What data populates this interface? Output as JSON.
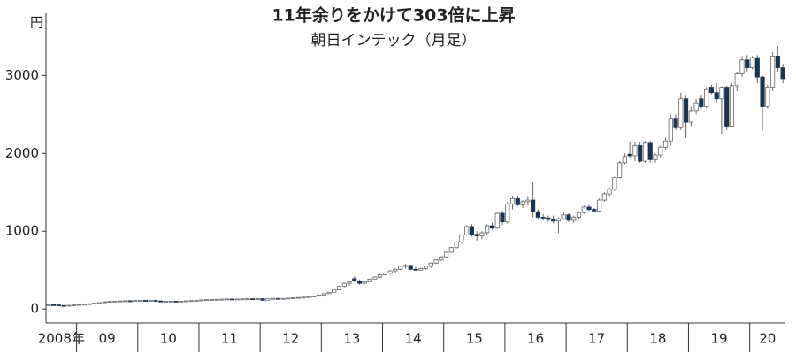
{
  "chart_data": {
    "type": "candlestick",
    "title": "11年余りをかけて303倍に上昇",
    "subtitle": "朝日インテック（月足）",
    "y_unit": "円",
    "ylim": [
      -180,
      3800
    ],
    "yticks": [
      0,
      1000,
      2000,
      3000
    ],
    "up_color": "#ffffff",
    "down_color": "#1d3450",
    "edge_color": "#666666",
    "years": [
      {
        "label": "2008年",
        "candles": [
          [
            55,
            58,
            50,
            55
          ],
          [
            55,
            56,
            48,
            52
          ],
          [
            52,
            54,
            40,
            45
          ],
          [
            45,
            50,
            35,
            42
          ],
          [
            42,
            50,
            40,
            48
          ],
          [
            48,
            55,
            45,
            52
          ]
        ]
      },
      {
        "label": "09",
        "candles": [
          [
            52,
            60,
            50,
            58
          ],
          [
            58,
            65,
            55,
            62
          ],
          [
            62,
            70,
            60,
            68
          ],
          [
            68,
            80,
            65,
            78
          ],
          [
            78,
            85,
            75,
            82
          ],
          [
            82,
            95,
            80,
            92
          ],
          [
            92,
            100,
            90,
            98
          ],
          [
            98,
            105,
            95,
            100
          ],
          [
            100,
            105,
            97,
            103
          ],
          [
            103,
            108,
            100,
            105
          ],
          [
            105,
            108,
            100,
            104
          ],
          [
            104,
            110,
            102,
            108
          ]
        ]
      },
      {
        "label": "10",
        "candles": [
          [
            108,
            112,
            104,
            110
          ],
          [
            110,
            114,
            105,
            108
          ],
          [
            108,
            112,
            104,
            110
          ],
          [
            110,
            115,
            100,
            102
          ],
          [
            102,
            108,
            90,
            92
          ],
          [
            92,
            100,
            88,
            98
          ],
          [
            98,
            104,
            95,
            100
          ],
          [
            100,
            105,
            92,
            94
          ],
          [
            94,
            102,
            90,
            100
          ],
          [
            100,
            106,
            98,
            104
          ],
          [
            104,
            110,
            100,
            108
          ],
          [
            108,
            114,
            104,
            110
          ]
        ]
      },
      {
        "label": "11",
        "candles": [
          [
            110,
            118,
            108,
            116
          ],
          [
            116,
            122,
            112,
            120
          ],
          [
            120,
            124,
            110,
            122
          ],
          [
            122,
            126,
            118,
            124
          ],
          [
            124,
            128,
            120,
            126
          ],
          [
            126,
            130,
            122,
            128
          ],
          [
            128,
            130,
            122,
            126
          ],
          [
            126,
            130,
            120,
            128
          ],
          [
            128,
            132,
            124,
            130
          ],
          [
            130,
            134,
            126,
            132
          ],
          [
            132,
            134,
            126,
            130
          ],
          [
            130,
            134,
            128,
            132
          ]
        ]
      },
      {
        "label": "12",
        "candles": [
          [
            132,
            134,
            108,
            112
          ],
          [
            112,
            135,
            110,
            132
          ],
          [
            132,
            138,
            128,
            136
          ],
          [
            136,
            140,
            130,
            134
          ],
          [
            134,
            138,
            128,
            136
          ],
          [
            136,
            142,
            132,
            140
          ],
          [
            140,
            146,
            136,
            144
          ],
          [
            144,
            150,
            140,
            148
          ],
          [
            148,
            154,
            144,
            152
          ],
          [
            152,
            160,
            148,
            158
          ],
          [
            158,
            168,
            154,
            165
          ],
          [
            165,
            180,
            162,
            178
          ]
        ]
      },
      {
        "label": "13",
        "candles": [
          [
            178,
            200,
            175,
            196
          ],
          [
            196,
            220,
            190,
            215
          ],
          [
            215,
            250,
            210,
            245
          ],
          [
            245,
            300,
            240,
            290
          ],
          [
            290,
            340,
            280,
            330
          ],
          [
            330,
            360,
            300,
            350
          ],
          [
            390,
            420,
            350,
            360
          ],
          [
            360,
            380,
            310,
            330
          ],
          [
            330,
            360,
            320,
            350
          ],
          [
            350,
            390,
            345,
            385
          ],
          [
            385,
            420,
            380,
            410
          ],
          [
            410,
            450,
            400,
            440
          ]
        ]
      },
      {
        "label": "14",
        "candles": [
          [
            440,
            470,
            430,
            460
          ],
          [
            460,
            500,
            450,
            490
          ],
          [
            490,
            520,
            470,
            510
          ],
          [
            510,
            560,
            500,
            550
          ],
          [
            550,
            580,
            520,
            560
          ],
          [
            560,
            570,
            500,
            510
          ],
          [
            510,
            540,
            490,
            500
          ],
          [
            500,
            530,
            495,
            520
          ],
          [
            520,
            560,
            510,
            550
          ],
          [
            550,
            600,
            530,
            590
          ],
          [
            590,
            640,
            580,
            630
          ],
          [
            630,
            680,
            620,
            670
          ]
        ]
      },
      {
        "label": "15",
        "candles": [
          [
            670,
            740,
            660,
            730
          ],
          [
            730,
            800,
            720,
            790
          ],
          [
            790,
            870,
            780,
            860
          ],
          [
            860,
            960,
            840,
            950
          ],
          [
            950,
            1080,
            940,
            1060
          ],
          [
            1060,
            1090,
            930,
            960
          ],
          [
            960,
            1000,
            880,
            940
          ],
          [
            940,
            1000,
            900,
            980
          ],
          [
            980,
            1090,
            960,
            1070
          ],
          [
            1070,
            1110,
            1020,
            1040
          ],
          [
            1040,
            1250,
            1030,
            1230
          ],
          [
            1230,
            1260,
            1080,
            1120
          ]
        ]
      },
      {
        "label": "16",
        "candles": [
          [
            1120,
            1380,
            1100,
            1350
          ],
          [
            1350,
            1450,
            1280,
            1420
          ],
          [
            1420,
            1460,
            1320,
            1340
          ],
          [
            1340,
            1400,
            1300,
            1380
          ],
          [
            1380,
            1440,
            1330,
            1400
          ],
          [
            1400,
            1630,
            1180,
            1250
          ],
          [
            1250,
            1280,
            1160,
            1180
          ],
          [
            1180,
            1220,
            1140,
            1170
          ],
          [
            1170,
            1200,
            1120,
            1150
          ],
          [
            1150,
            1200,
            1100,
            1130
          ],
          [
            1130,
            1180,
            980,
            1160
          ],
          [
            1160,
            1240,
            1140,
            1210
          ]
        ]
      },
      {
        "label": "17",
        "candles": [
          [
            1210,
            1230,
            1120,
            1140
          ],
          [
            1140,
            1200,
            1110,
            1180
          ],
          [
            1180,
            1260,
            1160,
            1240
          ],
          [
            1240,
            1330,
            1220,
            1310
          ],
          [
            1310,
            1340,
            1260,
            1280
          ],
          [
            1280,
            1300,
            1240,
            1260
          ],
          [
            1260,
            1420,
            1240,
            1400
          ],
          [
            1400,
            1500,
            1380,
            1480
          ],
          [
            1480,
            1560,
            1450,
            1540
          ],
          [
            1540,
            1700,
            1520,
            1690
          ],
          [
            1690,
            1900,
            1680,
            1880
          ],
          [
            1880,
            2000,
            1860,
            1960
          ]
        ]
      },
      {
        "label": "18",
        "candles": [
          [
            1990,
            2150,
            1940,
            1970
          ],
          [
            1970,
            2150,
            1900,
            2100
          ],
          [
            2100,
            2150,
            1880,
            1900
          ],
          [
            1900,
            2160,
            1880,
            2130
          ],
          [
            2130,
            2160,
            1880,
            1920
          ],
          [
            1920,
            2000,
            1880,
            1980
          ],
          [
            1980,
            2100,
            1950,
            2080
          ],
          [
            2080,
            2200,
            2050,
            2160
          ],
          [
            2160,
            2500,
            2100,
            2450
          ],
          [
            2450,
            2500,
            2300,
            2330
          ],
          [
            2330,
            2780,
            2300,
            2700
          ],
          [
            2700,
            2750,
            2200,
            2400
          ]
        ]
      },
      {
        "label": "19",
        "candles": [
          [
            2400,
            2600,
            2350,
            2550
          ],
          [
            2550,
            2700,
            2500,
            2650
          ],
          [
            2700,
            2750,
            2580,
            2600
          ],
          [
            2600,
            2850,
            2580,
            2820
          ],
          [
            2850,
            2880,
            2760,
            2780
          ],
          [
            2780,
            2900,
            2650,
            2700
          ],
          [
            2700,
            2860,
            2250,
            2850
          ],
          [
            2850,
            2870,
            2300,
            2350
          ],
          [
            2350,
            2900,
            2340,
            2870
          ],
          [
            2870,
            3050,
            2800,
            3020
          ],
          [
            3020,
            3250,
            2980,
            3200
          ],
          [
            3200,
            3260,
            3050,
            3100
          ]
        ]
      },
      {
        "label": "20",
        "candles": [
          [
            3100,
            3250,
            3080,
            3230
          ],
          [
            3230,
            3260,
            2900,
            2980
          ],
          [
            2980,
            3000,
            2300,
            2600
          ],
          [
            2600,
            2880,
            2580,
            2850
          ],
          [
            2850,
            3300,
            2800,
            3250
          ],
          [
            3250,
            3380,
            3050,
            3100
          ],
          [
            3100,
            3150,
            2900,
            2960
          ]
        ]
      }
    ]
  }
}
